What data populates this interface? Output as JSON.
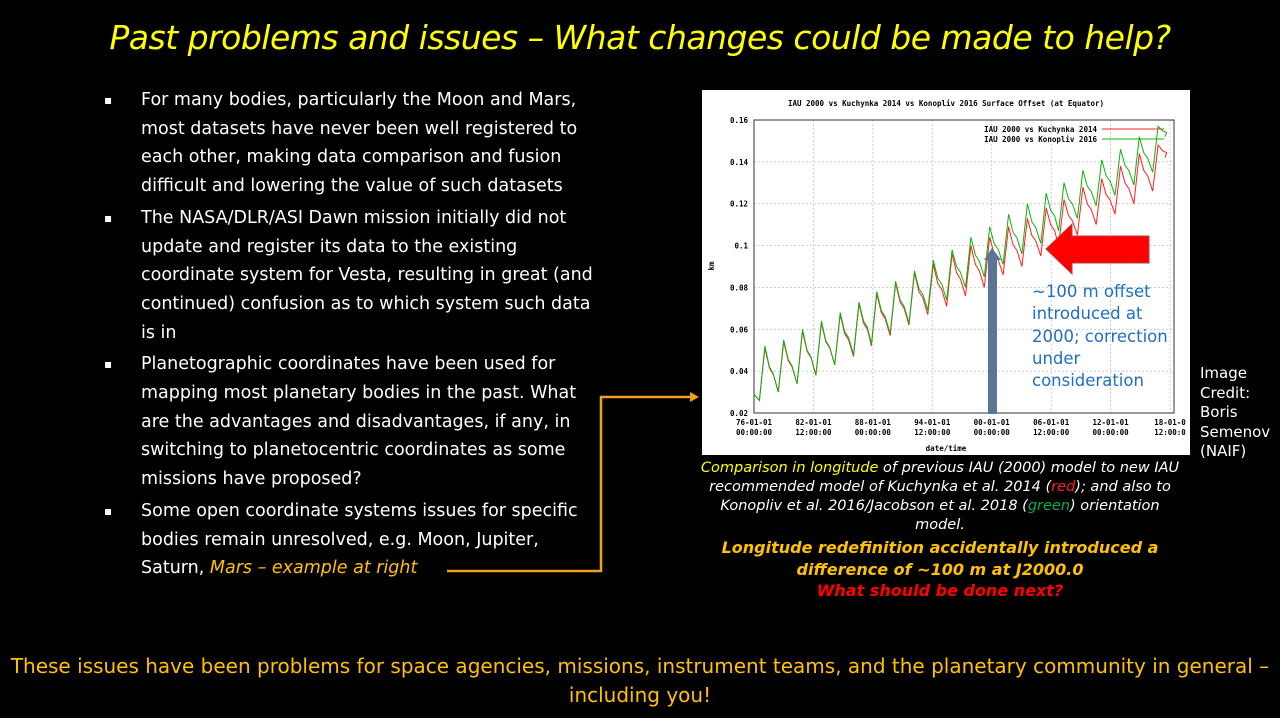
{
  "title": "Past problems and issues – What changes could be made to help?",
  "bullets": [
    {
      "text": "For many bodies, particularly the Moon and Mars, most datasets have never been well registered to each other, making data comparison and fusion difficult and lowering the value of such datasets"
    },
    {
      "text": "The NASA/DLR/ASI Dawn mission initially did not update and register its data to the existing coordinate system for Vesta, resulting in great (and continued) confusion as to which system such data is in"
    },
    {
      "text": "Planetographic coordinates have been used for mapping most planetary bodies in the past.  What are the advantages and disadvantages, if any, in switching to planetocentric coordinates as some missions have proposed?"
    },
    {
      "text": "Some open coordinate systems issues for specific bodies remain unresolved, e.g. Moon, Jupiter, Saturn, ",
      "highlight": "Mars – example at right"
    }
  ],
  "bullet_symbol": "▪",
  "annotation": "~100 m offset introduced at 2000; correction under consideration",
  "image_credit": [
    "Image",
    "Credit:",
    "Boris",
    "Semenov",
    "(NAIF)"
  ],
  "caption": {
    "part1": "Comparison in longitude",
    "part2": " of previous IAU (2000) model to new IAU recommended model of Kuchynka et al. 2014 (",
    "red": "red",
    "part3": "); and also to Konopliv et al. 2016/Jacobson et al. 2018 (",
    "green": "green",
    "part4": ") orientation model."
  },
  "conclusion": "Longitude redefinition accidentally introduced a difference of ~100 m at J2000.0",
  "question": "What should be done next?",
  "footer": "These issues have been problems for space agencies, missions, instrument teams, and the planetary community in general – including you!",
  "colors": {
    "title": "#ffff00",
    "accent": "#ffc000",
    "red_series": "#ff2020",
    "green_series": "#10b010",
    "arrow_red": "#ff0000",
    "arrow_blue": "#5a7596"
  },
  "chart_data": {
    "type": "line",
    "title": "IAU 2000 vs Kuchynka 2014 vs Konopliv 2016 Surface Offset (at Equator)",
    "xlabel": "date/time",
    "ylabel": "km",
    "xlim": [
      1976,
      2018.3
    ],
    "ylim": [
      0.02,
      0.16
    ],
    "grid": true,
    "legend": "top-right",
    "y_ticks": [
      0.02,
      0.04,
      0.06,
      0.08,
      0.1,
      0.12,
      0.14,
      0.16
    ],
    "y_tick_labels": [
      "0.02",
      "0.04",
      "0.06",
      "0.08",
      "0.1",
      "0.12",
      "0.14",
      "0.16"
    ],
    "x_ticks": [
      1976,
      1982,
      1988,
      1994,
      2000,
      2006,
      2012,
      2018
    ],
    "x_tick_labels": [
      [
        "76-01-01",
        "00:00:00"
      ],
      [
        "82-01-01",
        "12:00:00"
      ],
      [
        "88-01-01",
        "00:00:00"
      ],
      [
        "94-01-01",
        "12:00:00"
      ],
      [
        "00-01-01",
        "00:00:00"
      ],
      [
        "06-01-01",
        "12:00:00"
      ],
      [
        "12-01-01",
        "00:00:00"
      ],
      [
        "18-01-0",
        "12:00:0"
      ]
    ],
    "peak_x": [
      1977.1,
      1979.0,
      1980.9,
      1982.8,
      1984.7,
      1986.6,
      1988.4,
      1990.3,
      1992.2,
      1994.1,
      1996.0,
      1997.9,
      1999.8,
      2001.7,
      2003.6,
      2005.5,
      2007.3,
      2009.2,
      2011.1,
      2013.0,
      2014.9,
      2016.8
    ],
    "trough_x": [
      1976.55,
      1978.45,
      1980.35,
      1982.25,
      1984.15,
      1986.05,
      1987.85,
      1989.75,
      1991.65,
      1993.55,
      1995.45,
      1997.35,
      1999.25,
      2001.15,
      2003.05,
      2004.95,
      2006.75,
      2008.65,
      2010.55,
      2012.45,
      2014.35,
      2016.25
    ],
    "series": [
      {
        "name": "IAU 2000 vs Kuchynka 2014",
        "color": "#ff2020",
        "start": [
          1976.0,
          0.029
        ],
        "end": [
          2017.5,
          0.142
        ],
        "peaks": [
          0.051,
          0.054,
          0.059,
          0.063,
          0.067,
          0.072,
          0.077,
          0.082,
          0.087,
          0.091,
          0.096,
          0.1,
          0.104,
          0.109,
          0.113,
          0.118,
          0.122,
          0.128,
          0.132,
          0.138,
          0.144,
          0.148
        ],
        "troughs": [
          0.026,
          0.03,
          0.034,
          0.038,
          0.043,
          0.047,
          0.052,
          0.057,
          0.062,
          0.067,
          0.071,
          0.076,
          0.08,
          0.086,
          0.09,
          0.095,
          0.1,
          0.105,
          0.11,
          0.115,
          0.12,
          0.126
        ]
      },
      {
        "name": "IAU 2000 vs Konopliv 2016",
        "color": "#10b010",
        "start": [
          1976.0,
          0.029
        ],
        "end": [
          2017.5,
          0.152
        ],
        "peaks": [
          0.052,
          0.055,
          0.06,
          0.064,
          0.068,
          0.073,
          0.078,
          0.083,
          0.088,
          0.093,
          0.098,
          0.104,
          0.109,
          0.115,
          0.12,
          0.125,
          0.13,
          0.136,
          0.141,
          0.146,
          0.152,
          0.157
        ],
        "troughs": [
          0.026,
          0.03,
          0.034,
          0.038,
          0.043,
          0.048,
          0.053,
          0.058,
          0.063,
          0.069,
          0.074,
          0.08,
          0.085,
          0.091,
          0.096,
          0.101,
          0.107,
          0.113,
          0.119,
          0.124,
          0.129,
          0.135
        ]
      }
    ]
  }
}
